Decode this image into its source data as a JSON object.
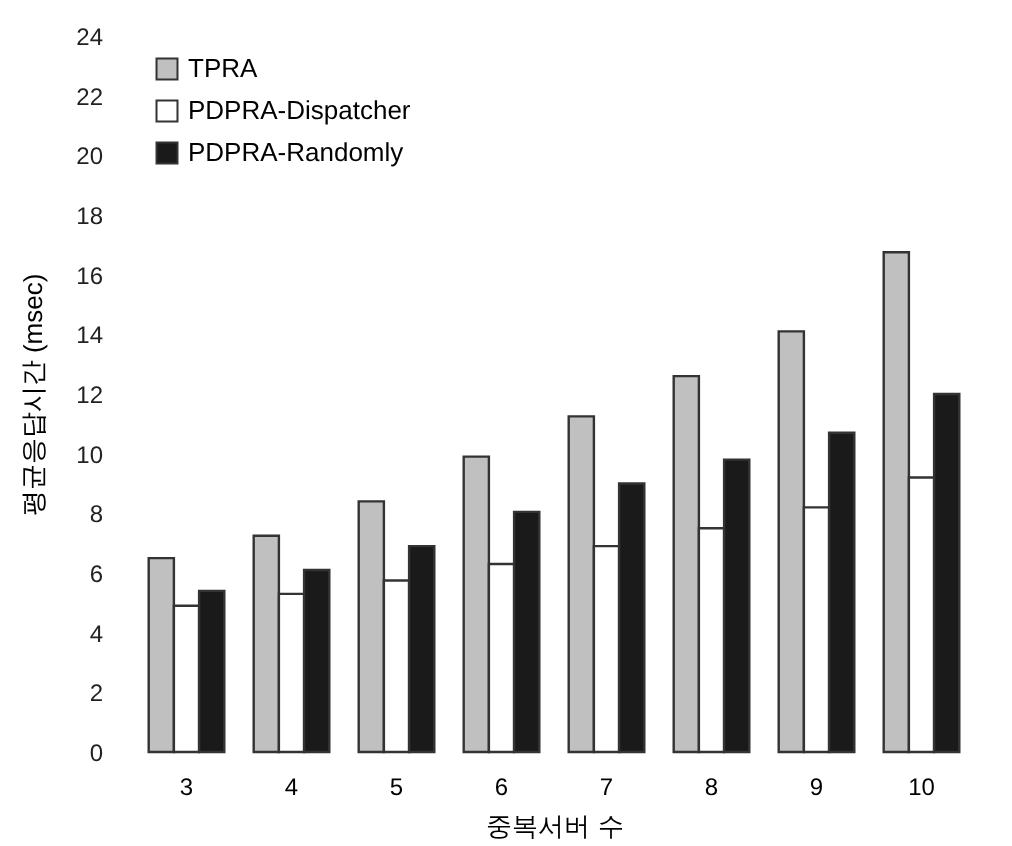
{
  "chart_data": {
    "type": "bar",
    "xlabel": "중복서버 수",
    "ylabel": "평균응답시간 (msec)",
    "categories": [
      "3",
      "4",
      "5",
      "6",
      "7",
      "8",
      "9",
      "10"
    ],
    "series": [
      {
        "name": "TPRA",
        "color": "#c0c0c0",
        "values": [
          6.5,
          7.25,
          8.4,
          9.9,
          11.25,
          12.6,
          14.1,
          16.75
        ]
      },
      {
        "name": "PDPRA-Dispatcher",
        "color": "#ffffff",
        "values": [
          4.9,
          5.3,
          5.75,
          6.3,
          6.9,
          7.5,
          8.2,
          9.2
        ]
      },
      {
        "name": "PDPRA-Randomly",
        "color": "#1a1a1a",
        "values": [
          5.4,
          6.1,
          6.9,
          8.05,
          9.0,
          9.8,
          10.7,
          12.0
        ]
      }
    ],
    "ylim": [
      0,
      24
    ],
    "yticks": [
      0,
      2,
      4,
      6,
      8,
      10,
      12,
      14,
      16,
      18,
      20,
      22,
      24
    ],
    "grid": false,
    "legend": "top left"
  }
}
